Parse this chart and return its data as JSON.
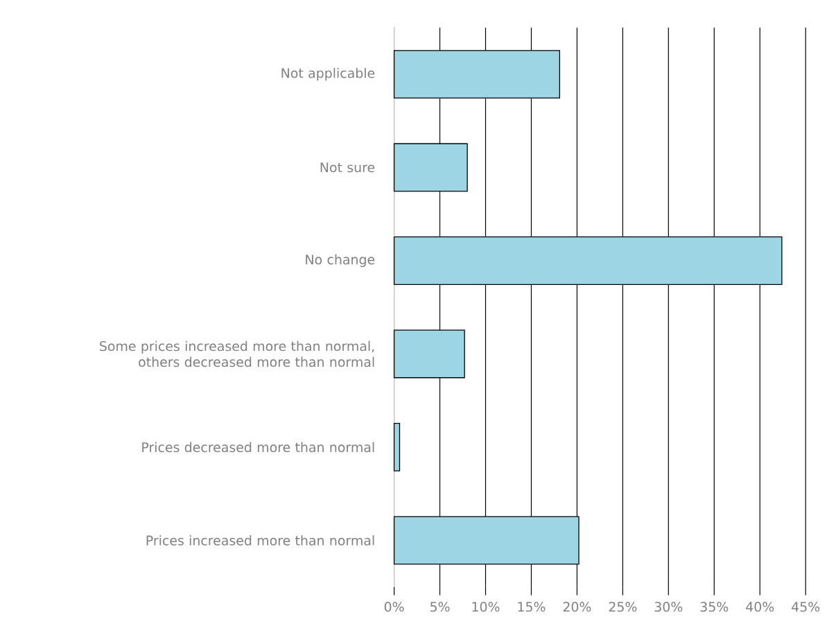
{
  "chart_data": {
    "type": "bar",
    "orientation": "horizontal",
    "categories": [
      "Not applicable",
      "Not sure",
      "No change",
      "Some prices increased more than normal, others decreased more than normal",
      "Prices decreased more than normal",
      "Prices increased more than normal"
    ],
    "values": [
      18.1,
      8.0,
      42.4,
      7.7,
      0.6,
      20.2
    ],
    "color": "#9dd5e4",
    "xlim": [
      0,
      45
    ],
    "xticks": [
      {
        "value": 0,
        "label": "0%"
      },
      {
        "value": 5,
        "label": "5%"
      },
      {
        "value": 10,
        "label": "10%"
      },
      {
        "value": 15,
        "label": "15%"
      },
      {
        "value": 20,
        "label": "20%"
      },
      {
        "value": 25,
        "label": "25%"
      },
      {
        "value": 30,
        "label": "30%"
      },
      {
        "value": 35,
        "label": "35%"
      },
      {
        "value": 40,
        "label": "40%"
      },
      {
        "value": 45,
        "label": "45%"
      }
    ],
    "grid": "x"
  }
}
